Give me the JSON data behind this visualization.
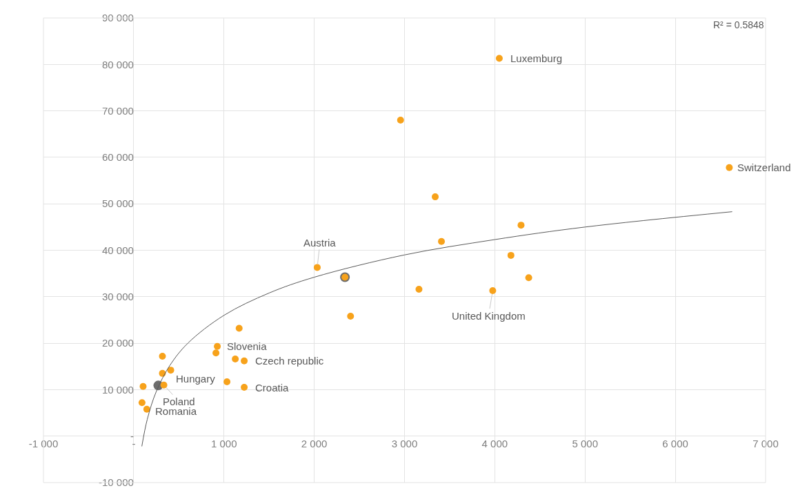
{
  "chart_data": {
    "type": "scatter",
    "marker": "circle",
    "grid": true,
    "legend": false,
    "xlim": [
      -1000,
      7000
    ],
    "xticks": [
      {
        "value": -1000,
        "label": "-1 000"
      },
      {
        "value": 0,
        "label": "-"
      },
      {
        "value": 1000,
        "label": "1 000"
      },
      {
        "value": 2000,
        "label": "2 000"
      },
      {
        "value": 3000,
        "label": "3 000"
      },
      {
        "value": 4000,
        "label": "4 000"
      },
      {
        "value": 5000,
        "label": "5 000"
      },
      {
        "value": 6000,
        "label": "6 000"
      },
      {
        "value": 7000,
        "label": "7 000"
      }
    ],
    "ylim": [
      -10000,
      90000
    ],
    "yticks": [
      {
        "value": -10000,
        "label": "-10 000"
      },
      {
        "value": 0,
        "label": "-"
      },
      {
        "value": 10000,
        "label": "10 000"
      },
      {
        "value": 20000,
        "label": "20 000"
      },
      {
        "value": 30000,
        "label": "30 000"
      },
      {
        "value": 40000,
        "label": "40 000"
      },
      {
        "value": 50000,
        "label": "50 000"
      },
      {
        "value": 60000,
        "label": "60 000"
      },
      {
        "value": 70000,
        "label": "70 000"
      },
      {
        "value": 80000,
        "label": "80 000"
      },
      {
        "value": 90000,
        "label": "90 000"
      }
    ],
    "series": [
      {
        "color": "#6d6d6d",
        "x": [
          272,
          2340
        ],
        "values": [
          10900,
          34200
        ]
      },
      {
        "color": "#f7a21b",
        "x": [
          4050,
          2956,
          6598,
          3340,
          4291,
          3409,
          4179,
          2033,
          2340,
          4376,
          3160,
          3977,
          2402,
          1168,
          926,
          911,
          1125,
          1224,
          1033,
          1224,
          318,
          318,
          410,
          334,
          104,
          92,
          145
        ],
        "values": [
          81300,
          68000,
          57800,
          51500,
          45400,
          41900,
          38900,
          36300,
          34200,
          34100,
          31600,
          31300,
          25800,
          23200,
          19300,
          17900,
          16600,
          16200,
          11700,
          10500,
          17200,
          13500,
          14200,
          11000,
          10700,
          7200,
          5800
        ]
      },
      {
        "type": "line",
        "marker": "none",
        "color": "#595959",
        "x": [
          90,
          150,
          250,
          400,
          600,
          1000,
          1500,
          2000,
          3000,
          4000,
          5000,
          6630
        ],
        "values": [
          -2200,
          3600,
          9600,
          15200,
          20000,
          26000,
          30800,
          34200,
          39000,
          42300,
          45000,
          48300
        ]
      }
    ],
    "annotations": [
      {
        "text": "Luxemburg",
        "x": 4050,
        "y": 81300
      },
      {
        "text": "Switzerland",
        "x": 6598,
        "y": 57800
      },
      {
        "text": "Austria",
        "x": 2033,
        "y": 36300
      },
      {
        "text": "United Kingdom",
        "x": 3977,
        "y": 31300
      },
      {
        "text": "Slovenia",
        "x": 926,
        "y": 19300
      },
      {
        "text": "Czech republic",
        "x": 1224,
        "y": 16200
      },
      {
        "text": "Croatia",
        "x": 1224,
        "y": 10500
      },
      {
        "text": "Hungary",
        "x": 272,
        "y": 10900
      },
      {
        "text": "Poland",
        "x": 334,
        "y": 11000
      },
      {
        "text": "Romania",
        "x": 145,
        "y": 5800
      },
      "R² = 0.5848"
    ]
  }
}
